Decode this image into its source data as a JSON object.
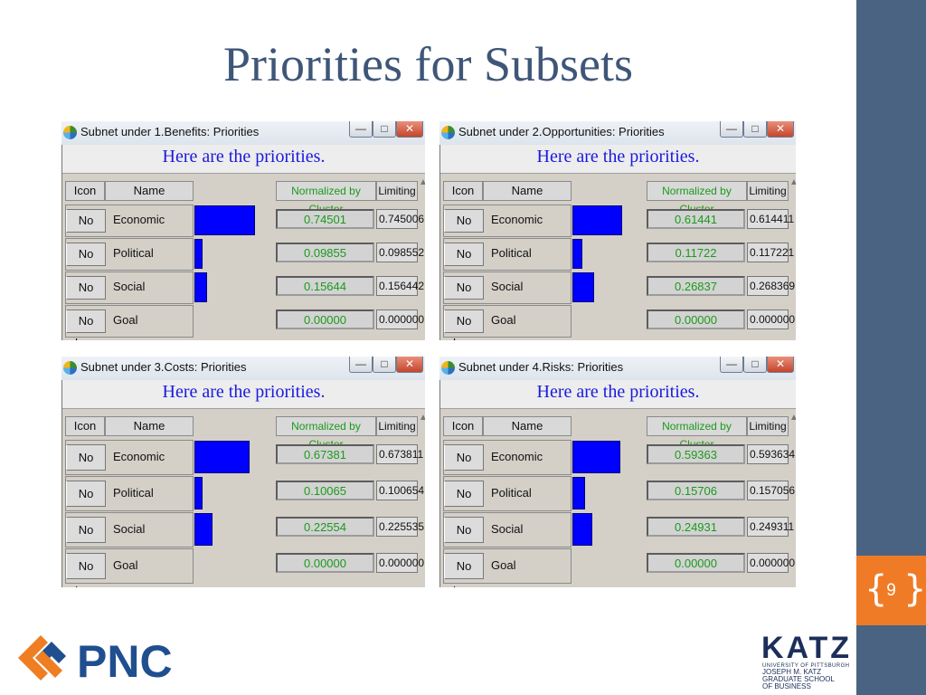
{
  "slide": {
    "title": "Priorities for Subsets",
    "page_number": "9"
  },
  "windows": [
    {
      "title": "Subnet under 1.Benefits: Priorities",
      "heading": "Here are the priorities.",
      "columns": {
        "icon": "Icon",
        "name": "Name",
        "normalized": "Normalized by Cluster",
        "limiting": "Limiting"
      },
      "rows": [
        {
          "icon": "No Icon",
          "name": "Economic",
          "normalized": "0.74501",
          "limiting": "0.745006",
          "value": 0.74501
        },
        {
          "icon": "No Icon",
          "name": "Political",
          "normalized": "0.09855",
          "limiting": "0.098552",
          "value": 0.09855
        },
        {
          "icon": "No Icon",
          "name": "Social",
          "normalized": "0.15644",
          "limiting": "0.156442",
          "value": 0.15644
        },
        {
          "icon": "No Icon",
          "name": "Goal",
          "normalized": "0.00000",
          "limiting": "0.000000",
          "value": 0
        }
      ]
    },
    {
      "title": "Subnet under 2.Opportunities: Priorities",
      "heading": "Here are the priorities.",
      "columns": {
        "icon": "Icon",
        "name": "Name",
        "normalized": "Normalized by Cluster",
        "limiting": "Limiting"
      },
      "rows": [
        {
          "icon": "No Icon",
          "name": "Economic",
          "normalized": "0.61441",
          "limiting": "0.614411",
          "value": 0.61441
        },
        {
          "icon": "No Icon",
          "name": "Political",
          "normalized": "0.11722",
          "limiting": "0.117221",
          "value": 0.11722
        },
        {
          "icon": "No Icon",
          "name": "Social",
          "normalized": "0.26837",
          "limiting": "0.268369",
          "value": 0.26837
        },
        {
          "icon": "No Icon",
          "name": "Goal",
          "normalized": "0.00000",
          "limiting": "0.000000",
          "value": 0
        }
      ]
    },
    {
      "title": "Subnet under 3.Costs: Priorities",
      "heading": "Here are the priorities.",
      "columns": {
        "icon": "Icon",
        "name": "Name",
        "normalized": "Normalized by Cluster",
        "limiting": "Limiting"
      },
      "rows": [
        {
          "icon": "No Icon",
          "name": "Economic",
          "normalized": "0.67381",
          "limiting": "0.673811",
          "value": 0.67381
        },
        {
          "icon": "No Icon",
          "name": "Political",
          "normalized": "0.10065",
          "limiting": "0.100654",
          "value": 0.10065
        },
        {
          "icon": "No Icon",
          "name": "Social",
          "normalized": "0.22554",
          "limiting": "0.225535",
          "value": 0.22554
        },
        {
          "icon": "No Icon",
          "name": "Goal",
          "normalized": "0.00000",
          "limiting": "0.000000",
          "value": 0
        }
      ]
    },
    {
      "title": "Subnet under 4.Risks: Priorities",
      "heading": "Here are the priorities.",
      "columns": {
        "icon": "Icon",
        "name": "Name",
        "normalized": "Normalized by Cluster",
        "limiting": "Limiting"
      },
      "rows": [
        {
          "icon": "No Icon",
          "name": "Economic",
          "normalized": "0.59363",
          "limiting": "0.593634",
          "value": 0.59363
        },
        {
          "icon": "No Icon",
          "name": "Political",
          "normalized": "0.15706",
          "limiting": "0.157056",
          "value": 0.15706
        },
        {
          "icon": "No Icon",
          "name": "Social",
          "normalized": "0.24931",
          "limiting": "0.249311",
          "value": 0.24931
        },
        {
          "icon": "No Icon",
          "name": "Goal",
          "normalized": "0.00000",
          "limiting": "0.000000",
          "value": 0
        }
      ]
    }
  ],
  "logos": {
    "pnc": "PNC",
    "katz_wordmark": "KATZ",
    "katz_lines": [
      "UNIVERSITY OF PITTSBURGH",
      "JOSEPH M. KATZ",
      "GRADUATE SCHOOL",
      "OF BUSINESS"
    ]
  },
  "colors": {
    "title": "#3e5678",
    "sidebar": "#4a6382",
    "page_box": "#f07b26",
    "bar": "#0000ff",
    "heading": "#1a1adf",
    "normalized_text": "#1b9a1b",
    "pnc_blue": "#1f4f8f",
    "pnc_orange": "#ef7d22",
    "katz_navy": "#1c2e5a"
  }
}
